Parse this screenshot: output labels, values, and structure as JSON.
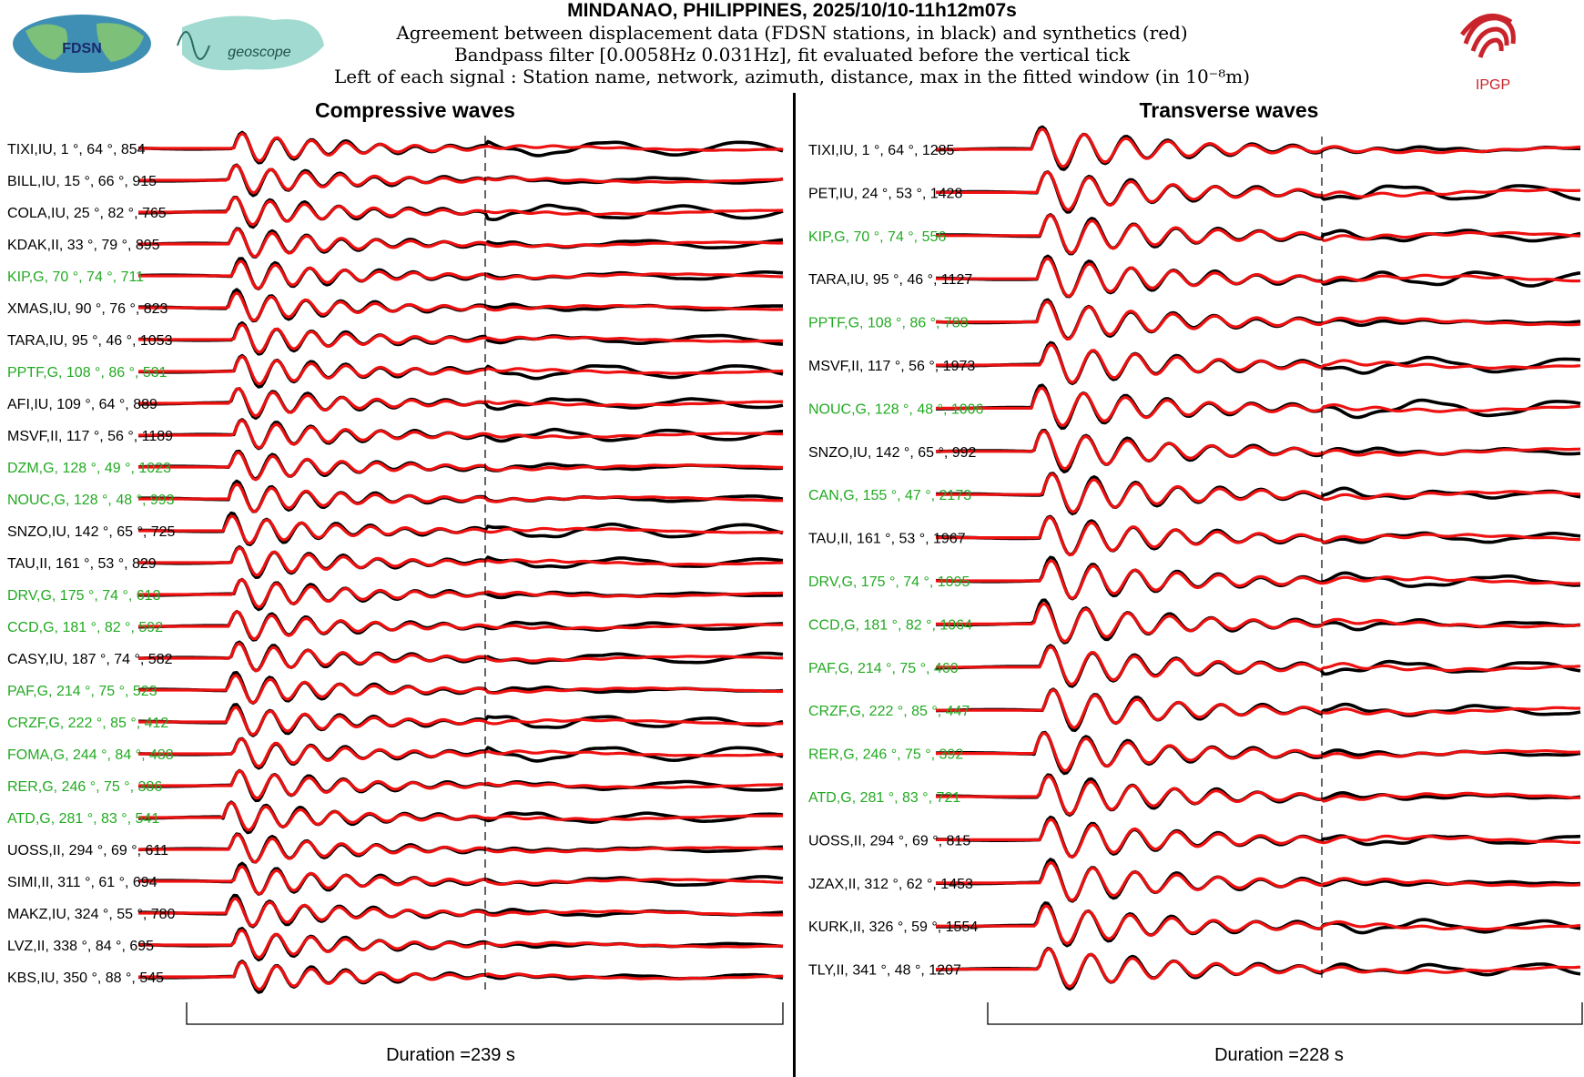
{
  "header": {
    "title": "MINDANAO, PHILIPPINES, 2025/10/10-11h12m07s",
    "line1": "Agreement between displacement data (FDSN stations, in black) and synthetics (red)",
    "line2": "Bandpass filter [0.0058Hz 0.031Hz], fit evaluated before the vertical tick",
    "line3": "Left of each signal : Station name, network, azimuth, distance, max in the fitted window (in 10⁻⁸m)"
  },
  "logos": {
    "fdsn": "FDSN",
    "geoscope": "geoscope",
    "ipgp": "IPGP"
  },
  "colors": {
    "data": "#000000",
    "synthetic": "#ee1111",
    "geoscope_station": "#22aa22",
    "label": "#000000"
  },
  "chart_data": [
    {
      "type": "line",
      "title": "Compressive waves",
      "duration_label": "Duration =239 s",
      "duration_s": 239,
      "series_names": [
        "data",
        "synthetics"
      ],
      "stations": [
        {
          "name": "TIXI",
          "net": "IU",
          "az": 1,
          "dist": 64,
          "max": 854,
          "geoscope": false
        },
        {
          "name": "BILL",
          "net": "IU",
          "az": 15,
          "dist": 66,
          "max": 915,
          "geoscope": false
        },
        {
          "name": "COLA",
          "net": "IU",
          "az": 25,
          "dist": 82,
          "max": 765,
          "geoscope": false
        },
        {
          "name": "KDAK",
          "net": "II",
          "az": 33,
          "dist": 79,
          "max": 895,
          "geoscope": false
        },
        {
          "name": "KIP",
          "net": "G",
          "az": 70,
          "dist": 74,
          "max": 711,
          "geoscope": true
        },
        {
          "name": "XMAS",
          "net": "IU",
          "az": 90,
          "dist": 76,
          "max": 823,
          "geoscope": false
        },
        {
          "name": "TARA",
          "net": "IU",
          "az": 95,
          "dist": 46,
          "max": 1053,
          "geoscope": false
        },
        {
          "name": "PPTF",
          "net": "G",
          "az": 108,
          "dist": 86,
          "max": 531,
          "geoscope": true
        },
        {
          "name": "AFI",
          "net": "IU",
          "az": 109,
          "dist": 64,
          "max": 889,
          "geoscope": false
        },
        {
          "name": "MSVF",
          "net": "II",
          "az": 117,
          "dist": 56,
          "max": 1189,
          "geoscope": false
        },
        {
          "name": "DZM",
          "net": "G",
          "az": 128,
          "dist": 49,
          "max": 1023,
          "geoscope": true
        },
        {
          "name": "NOUC",
          "net": "G",
          "az": 128,
          "dist": 48,
          "max": 993,
          "geoscope": true
        },
        {
          "name": "SNZO",
          "net": "IU",
          "az": 142,
          "dist": 65,
          "max": 725,
          "geoscope": false
        },
        {
          "name": "TAU",
          "net": "II",
          "az": 161,
          "dist": 53,
          "max": 829,
          "geoscope": false
        },
        {
          "name": "DRV",
          "net": "G",
          "az": 175,
          "dist": 74,
          "max": 613,
          "geoscope": true
        },
        {
          "name": "CCD",
          "net": "G",
          "az": 181,
          "dist": 82,
          "max": 592,
          "geoscope": true
        },
        {
          "name": "CASY",
          "net": "IU",
          "az": 187,
          "dist": 74,
          "max": 582,
          "geoscope": false
        },
        {
          "name": "PAF",
          "net": "G",
          "az": 214,
          "dist": 75,
          "max": 523,
          "geoscope": true
        },
        {
          "name": "CRZF",
          "net": "G",
          "az": 222,
          "dist": 85,
          "max": 412,
          "geoscope": true
        },
        {
          "name": "FOMA",
          "net": "G",
          "az": 244,
          "dist": 84,
          "max": 488,
          "geoscope": true
        },
        {
          "name": "RER",
          "net": "G",
          "az": 246,
          "dist": 75,
          "max": 386,
          "geoscope": true
        },
        {
          "name": "ATD",
          "net": "G",
          "az": 281,
          "dist": 83,
          "max": 541,
          "geoscope": true
        },
        {
          "name": "UOSS",
          "net": "II",
          "az": 294,
          "dist": 69,
          "max": 611,
          "geoscope": false
        },
        {
          "name": "SIMI",
          "net": "II",
          "az": 311,
          "dist": 61,
          "max": 694,
          "geoscope": false
        },
        {
          "name": "MAKZ",
          "net": "IU",
          "az": 324,
          "dist": 55,
          "max": 780,
          "geoscope": false
        },
        {
          "name": "LVZ",
          "net": "II",
          "az": 338,
          "dist": 84,
          "max": 695,
          "geoscope": false
        },
        {
          "name": "KBS",
          "net": "IU",
          "az": 350,
          "dist": 88,
          "max": 545,
          "geoscope": false
        }
      ]
    },
    {
      "type": "line",
      "title": "Transverse waves",
      "duration_label": "Duration =228 s",
      "duration_s": 228,
      "series_names": [
        "data",
        "synthetics"
      ],
      "stations": [
        {
          "name": "TIXI",
          "net": "IU",
          "az": 1,
          "dist": 64,
          "max": 1285,
          "geoscope": false
        },
        {
          "name": "PET",
          "net": "IU",
          "az": 24,
          "dist": 53,
          "max": 1428,
          "geoscope": false
        },
        {
          "name": "KIP",
          "net": "G",
          "az": 70,
          "dist": 74,
          "max": 556,
          "geoscope": true
        },
        {
          "name": "TARA",
          "net": "IU",
          "az": 95,
          "dist": 46,
          "max": 1127,
          "geoscope": false
        },
        {
          "name": "PPTF",
          "net": "G",
          "az": 108,
          "dist": 86,
          "max": 788,
          "geoscope": true
        },
        {
          "name": "MSVF",
          "net": "II",
          "az": 117,
          "dist": 56,
          "max": 1973,
          "geoscope": false
        },
        {
          "name": "NOUC",
          "net": "G",
          "az": 128,
          "dist": 48,
          "max": 1006,
          "geoscope": true
        },
        {
          "name": "SNZO",
          "net": "IU",
          "az": 142,
          "dist": 65,
          "max": 992,
          "geoscope": false
        },
        {
          "name": "CAN",
          "net": "G",
          "az": 155,
          "dist": 47,
          "max": 2173,
          "geoscope": true
        },
        {
          "name": "TAU",
          "net": "II",
          "az": 161,
          "dist": 53,
          "max": 1967,
          "geoscope": false
        },
        {
          "name": "DRV",
          "net": "G",
          "az": 175,
          "dist": 74,
          "max": 1095,
          "geoscope": true
        },
        {
          "name": "CCD",
          "net": "G",
          "az": 181,
          "dist": 82,
          "max": 1064,
          "geoscope": true
        },
        {
          "name": "PAF",
          "net": "G",
          "az": 214,
          "dist": 75,
          "max": 460,
          "geoscope": true
        },
        {
          "name": "CRZF",
          "net": "G",
          "az": 222,
          "dist": 85,
          "max": 447,
          "geoscope": true
        },
        {
          "name": "RER",
          "net": "G",
          "az": 246,
          "dist": 75,
          "max": 392,
          "geoscope": true
        },
        {
          "name": "ATD",
          "net": "G",
          "az": 281,
          "dist": 83,
          "max": 721,
          "geoscope": true
        },
        {
          "name": "UOSS",
          "net": "II",
          "az": 294,
          "dist": 69,
          "max": 815,
          "geoscope": false
        },
        {
          "name": "JZAX",
          "net": "II",
          "az": 312,
          "dist": 62,
          "max": 1453,
          "geoscope": false
        },
        {
          "name": "KURK",
          "net": "II",
          "az": 326,
          "dist": 59,
          "max": 1554,
          "geoscope": false
        },
        {
          "name": "TLY",
          "net": "II",
          "az": 341,
          "dist": 48,
          "max": 1207,
          "geoscope": false
        }
      ]
    }
  ]
}
